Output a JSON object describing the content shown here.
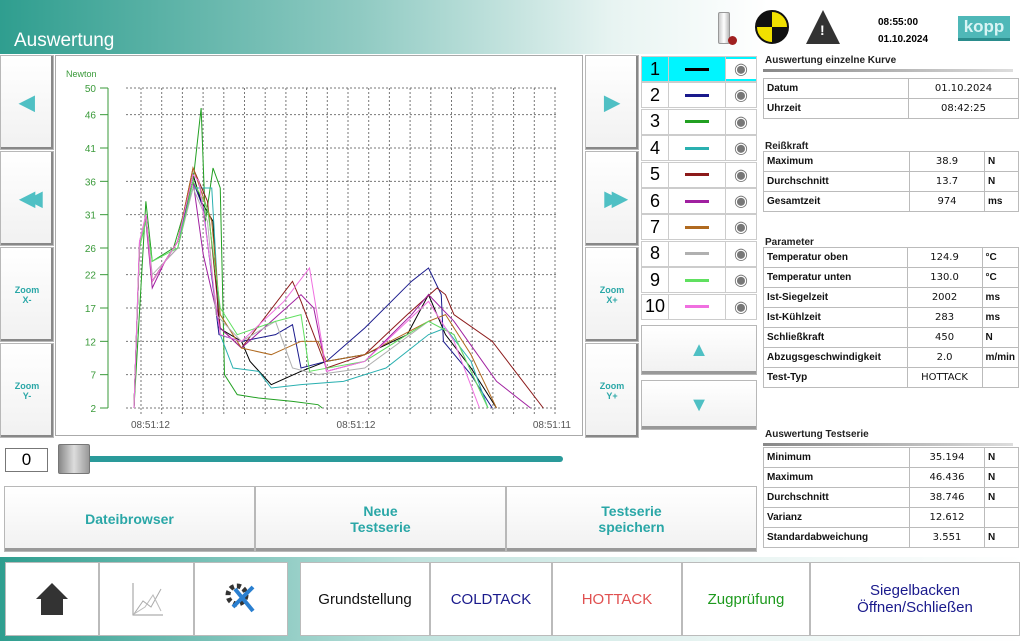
{
  "header": {
    "title": "Auswertung",
    "time": "08:55:00",
    "date": "01.10.2024",
    "logo": "kopp",
    "icons": [
      "usb-stick-icon",
      "calibration-target-icon",
      "warning-icon"
    ]
  },
  "left_buttons": {
    "back": "◀",
    "fast_back": "◀◀",
    "zoom_x_minus": "Zoom\nX-",
    "zoom_y_minus": "Zoom\nY-"
  },
  "right_buttons": {
    "forward": "▶",
    "fast_forward": "▶▶",
    "zoom_x_plus": "Zoom\nX+",
    "zoom_y_plus": "Zoom\nY+"
  },
  "chart_data": {
    "type": "line",
    "ylabel": "Newton",
    "ylim": [
      2,
      50
    ],
    "yticks": [
      "50",
      "46",
      "41",
      "36",
      "31",
      "26",
      "22",
      "17",
      "12",
      "7",
      "2"
    ],
    "xticks": [
      "08:51:12",
      "08:51:12",
      "08:51:11"
    ],
    "grid": true,
    "series": [
      {
        "name": "1",
        "color": "#000000",
        "points": [
          [
            0.7,
            2
          ],
          [
            2,
            26
          ],
          [
            3.5,
            31
          ],
          [
            5,
            21
          ],
          [
            8,
            24
          ],
          [
            11,
            27
          ],
          [
            14.6,
            37
          ],
          [
            16.5,
            33
          ],
          [
            19.3,
            30
          ],
          [
            20.7,
            14
          ],
          [
            26,
            12
          ],
          [
            28,
            9
          ],
          [
            33,
            5.5
          ],
          [
            40,
            7.5
          ],
          [
            46,
            9
          ],
          [
            55,
            10
          ],
          [
            65,
            13
          ],
          [
            70,
            19
          ],
          [
            74,
            13
          ],
          [
            80,
            8
          ],
          [
            86,
            2
          ]
        ]
      },
      {
        "name": "2",
        "color": "#1a1a8c",
        "points": [
          [
            0.7,
            2
          ],
          [
            2,
            26
          ],
          [
            3.5,
            31
          ],
          [
            5,
            21
          ],
          [
            8,
            24
          ],
          [
            11,
            27
          ],
          [
            14.6,
            36
          ],
          [
            17,
            32
          ],
          [
            20.7,
            13
          ],
          [
            26,
            12
          ],
          [
            34,
            13
          ],
          [
            38,
            14.5
          ],
          [
            40,
            8
          ],
          [
            46,
            9
          ],
          [
            55,
            14
          ],
          [
            66,
            21
          ],
          [
            70,
            23
          ],
          [
            73,
            19
          ],
          [
            73.5,
            12
          ],
          [
            80,
            7
          ],
          [
            85,
            2
          ]
        ]
      },
      {
        "name": "3",
        "color": "#22a022",
        "points": [
          [
            0.7,
            2
          ],
          [
            3.5,
            33
          ],
          [
            5,
            24
          ],
          [
            10,
            26
          ],
          [
            14.6,
            36
          ],
          [
            16.5,
            47
          ],
          [
            17.5,
            30
          ],
          [
            19.3,
            38
          ],
          [
            21,
            35
          ],
          [
            22,
            7
          ],
          [
            25,
            4
          ],
          [
            30,
            3.5
          ],
          [
            38,
            3
          ],
          [
            44,
            2.5
          ],
          [
            45,
            2
          ]
        ]
      },
      {
        "name": "4",
        "color": "#2ab0b0",
        "points": [
          [
            0.7,
            2
          ],
          [
            2,
            26
          ],
          [
            3.5,
            31
          ],
          [
            5,
            21
          ],
          [
            8,
            24
          ],
          [
            11,
            27
          ],
          [
            14.6,
            35
          ],
          [
            19,
            35
          ],
          [
            21,
            13
          ],
          [
            24,
            8
          ],
          [
            30,
            7.5
          ],
          [
            33,
            5
          ],
          [
            40,
            5.5
          ],
          [
            50,
            6
          ],
          [
            60,
            8
          ],
          [
            70,
            13
          ],
          [
            74,
            14
          ],
          [
            80,
            9
          ],
          [
            84,
            2
          ]
        ]
      },
      {
        "name": "5",
        "color": "#8c1a1a",
        "points": [
          [
            0.7,
            2
          ],
          [
            2,
            26
          ],
          [
            3.5,
            31
          ],
          [
            5,
            21
          ],
          [
            8,
            24
          ],
          [
            11,
            27
          ],
          [
            14.6,
            38
          ],
          [
            18,
            33
          ],
          [
            21,
            14
          ],
          [
            26,
            11
          ],
          [
            38,
            21
          ],
          [
            40,
            18
          ],
          [
            46,
            8
          ],
          [
            55,
            10
          ],
          [
            65,
            16
          ],
          [
            72,
            20
          ],
          [
            74,
            19
          ],
          [
            76,
            16
          ],
          [
            85,
            12
          ],
          [
            97,
            2
          ]
        ]
      },
      {
        "name": "6",
        "color": "#a020a0",
        "points": [
          [
            0.7,
            2
          ],
          [
            2,
            27
          ],
          [
            3.5,
            30
          ],
          [
            5,
            20
          ],
          [
            8,
            24
          ],
          [
            11,
            26
          ],
          [
            14.6,
            36
          ],
          [
            17,
            25
          ],
          [
            21,
            14
          ],
          [
            26,
            11
          ],
          [
            40,
            19
          ],
          [
            43,
            17
          ],
          [
            46,
            7.5
          ],
          [
            55,
            9
          ],
          [
            66,
            16
          ],
          [
            70,
            19
          ],
          [
            76,
            15
          ],
          [
            86,
            6
          ],
          [
            94,
            2
          ]
        ]
      },
      {
        "name": "7",
        "color": "#b06a20",
        "points": [
          [
            0.7,
            2
          ],
          [
            2,
            26
          ],
          [
            3.5,
            31
          ],
          [
            5,
            21
          ],
          [
            8,
            24
          ],
          [
            11,
            27
          ],
          [
            14.6,
            38
          ],
          [
            19,
            30
          ],
          [
            21,
            16
          ],
          [
            26,
            11
          ],
          [
            33,
            10
          ],
          [
            40,
            12
          ],
          [
            44,
            12
          ],
          [
            46,
            9
          ],
          [
            55,
            10
          ],
          [
            70,
            15
          ],
          [
            74,
            16
          ],
          [
            80,
            10
          ],
          [
            86,
            2
          ]
        ]
      },
      {
        "name": "8",
        "color": "#b0b0b0",
        "points": [
          [
            0.7,
            2
          ],
          [
            2,
            26
          ],
          [
            3.5,
            31
          ],
          [
            5,
            22
          ],
          [
            8,
            24
          ],
          [
            11,
            26
          ],
          [
            14.6,
            35
          ],
          [
            18,
            30
          ],
          [
            20,
            16
          ],
          [
            26,
            12
          ],
          [
            34,
            15
          ],
          [
            38,
            8
          ],
          [
            44,
            7
          ],
          [
            55,
            8
          ],
          [
            70,
            15
          ],
          [
            76,
            13
          ],
          [
            84,
            2
          ]
        ]
      },
      {
        "name": "9",
        "color": "#60e060",
        "points": [
          [
            0.7,
            2
          ],
          [
            2,
            26
          ],
          [
            3.5,
            30
          ],
          [
            5,
            24
          ],
          [
            8,
            25
          ],
          [
            11,
            26
          ],
          [
            14.6,
            36
          ],
          [
            18,
            32
          ],
          [
            21,
            17
          ],
          [
            25,
            13
          ],
          [
            34,
            15
          ],
          [
            40,
            16
          ],
          [
            42,
            7.5
          ],
          [
            55,
            9
          ],
          [
            70,
            15
          ],
          [
            76,
            13
          ],
          [
            84,
            2
          ]
        ]
      },
      {
        "name": "10",
        "color": "#f070e0",
        "points": [
          [
            0.7,
            2
          ],
          [
            2,
            27
          ],
          [
            3.5,
            31
          ],
          [
            5,
            21
          ],
          [
            8,
            24
          ],
          [
            11,
            27
          ],
          [
            14.6,
            37
          ],
          [
            16,
            36
          ],
          [
            21,
            13
          ],
          [
            26,
            12
          ],
          [
            36,
            18
          ],
          [
            42,
            23
          ],
          [
            46,
            7.5
          ],
          [
            55,
            9
          ],
          [
            70,
            18
          ],
          [
            76,
            12
          ],
          [
            82,
            2
          ]
        ]
      }
    ]
  },
  "legend": {
    "selected": "1",
    "eye_icon": "eye-icon"
  },
  "scroll": {
    "up": "▲",
    "down": "▼"
  },
  "single_curve": {
    "title": "Auswertung einzelne Kurve",
    "info": [
      {
        "label": "Datum",
        "value": "01.10.2024"
      },
      {
        "label": "Uhrzeit",
        "value": "08:42:25"
      }
    ],
    "force_title": "Reißkraft",
    "force": [
      {
        "label": "Maximum",
        "value": "38.9",
        "unit": "N"
      },
      {
        "label": "Durchschnitt",
        "value": "13.7",
        "unit": "N"
      },
      {
        "label": "Gesamtzeit",
        "value": "974",
        "unit": "ms"
      }
    ],
    "param_title": "Parameter",
    "params": [
      {
        "label": "Temperatur oben",
        "value": "124.9",
        "unit": "°C"
      },
      {
        "label": "Temperatur unten",
        "value": "130.0",
        "unit": "°C"
      },
      {
        "label": "Ist-Siegelzeit",
        "value": "2002",
        "unit": "ms"
      },
      {
        "label": "Ist-Kühlzeit",
        "value": "283",
        "unit": "ms"
      },
      {
        "label": "Schließkraft",
        "value": "450",
        "unit": "N"
      },
      {
        "label": "Abzugsgeschwindigkeit",
        "value": "2.0",
        "unit": "m/min"
      },
      {
        "label": "Test-Typ",
        "value": "HOTTACK",
        "unit": ""
      }
    ]
  },
  "series_eval": {
    "title": "Auswertung Testserie",
    "rows": [
      {
        "label": "Minimum",
        "value": "35.194",
        "unit": "N"
      },
      {
        "label": "Maximum",
        "value": "46.436",
        "unit": "N"
      },
      {
        "label": "Durchschnitt",
        "value": "38.746",
        "unit": "N"
      },
      {
        "label": "Varianz",
        "value": "12.612",
        "unit": ""
      },
      {
        "label": "Standardabweichung",
        "value": "3.551",
        "unit": "N"
      }
    ]
  },
  "slider": {
    "value": "0",
    "position": 0
  },
  "actions": {
    "file_browser": "Dateibrowser",
    "new_series": "Neue\nTestserie",
    "save_series": "Testserie\nspeichern"
  },
  "nav": {
    "icons": [
      "home-icon",
      "chart-icon",
      "settings-tools-icon"
    ],
    "buttons": [
      {
        "label": "Grundstellung",
        "color": "#111111"
      },
      {
        "label": "COLDTACK",
        "color": "#1a1a8c"
      },
      {
        "label": "HOTTACK",
        "color": "#e05050"
      },
      {
        "label": "Zugprüfung",
        "color": "#1e9a1e"
      },
      {
        "label": "Siegelbacken\nÖffnen/Schließen",
        "color": "#1a1a8c"
      }
    ]
  }
}
